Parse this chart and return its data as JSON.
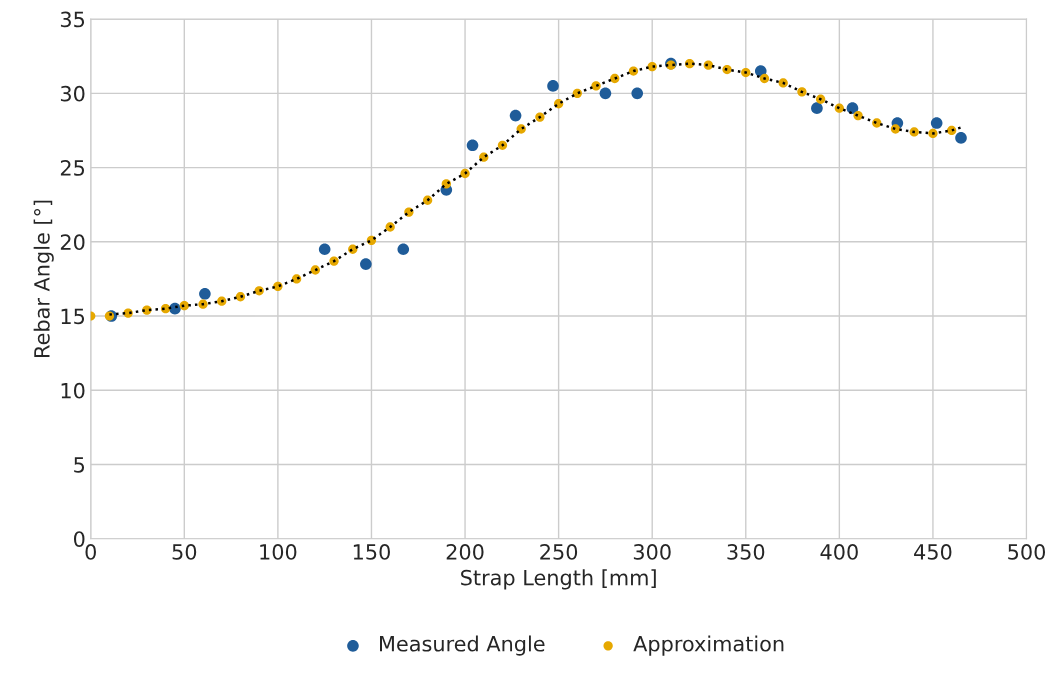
{
  "chart_data": {
    "type": "scatter",
    "xlabel": "Strap Length [mm]",
    "ylabel": "Rebar Angle [°]",
    "xlim": [
      0,
      500
    ],
    "xticks": [
      0,
      50,
      100,
      150,
      200,
      250,
      300,
      350,
      400,
      450,
      500
    ],
    "ylim": [
      0,
      35
    ],
    "yticks": [
      0,
      5,
      10,
      15,
      20,
      25,
      30,
      35
    ],
    "grid": true,
    "legend": "bottom",
    "marker": "circle",
    "series": [
      {
        "name": "Measured Angle",
        "color": "#1f5c99",
        "x": [
          11,
          45,
          61,
          125,
          147,
          167,
          190,
          204,
          227,
          247,
          275,
          292,
          310,
          358,
          388,
          407,
          431,
          452,
          465
        ],
        "values": [
          15,
          15.5,
          16.5,
          19.5,
          18.5,
          19.5,
          23.5,
          26.5,
          28.5,
          30.5,
          30,
          30,
          32,
          31.5,
          29,
          29,
          28,
          28,
          27
        ]
      },
      {
        "name": "Approximation",
        "color": "#e6a800",
        "x": [
          0,
          10,
          20,
          30,
          40,
          50,
          60,
          70,
          80,
          90,
          100,
          110,
          120,
          130,
          140,
          150,
          160,
          170,
          180,
          190,
          200,
          210,
          220,
          230,
          240,
          250,
          260,
          270,
          280,
          290,
          300,
          310,
          320,
          330,
          340,
          350,
          360,
          370,
          380,
          390,
          400,
          410,
          420,
          430,
          440,
          450,
          460
        ],
        "values": [
          15,
          15,
          15.2,
          15.4,
          15.5,
          15.7,
          15.8,
          16.0,
          16.3,
          16.7,
          17.0,
          17.5,
          18.1,
          18.7,
          19.5,
          20.1,
          21.0,
          22.0,
          22.8,
          23.9,
          24.6,
          25.7,
          26.5,
          27.6,
          28.4,
          29.3,
          30.0,
          30.5,
          31.0,
          31.5,
          31.8,
          31.9,
          32.0,
          31.9,
          31.6,
          31.4,
          31.0,
          30.7,
          30.1,
          29.6,
          29.0,
          28.5,
          28.0,
          27.6,
          27.4,
          27.3,
          27.5
        ]
      },
      {
        "type": "line",
        "color": "#000000",
        "line_style": "dotted",
        "marker": "none",
        "x": [
          10,
          20,
          30,
          40,
          50,
          60,
          70,
          80,
          90,
          100,
          110,
          120,
          130,
          140,
          150,
          160,
          170,
          180,
          190,
          200,
          210,
          220,
          230,
          240,
          250,
          260,
          270,
          280,
          290,
          300,
          310,
          320,
          330,
          340,
          350,
          360,
          370,
          380,
          390,
          400,
          410,
          420,
          430,
          440,
          450,
          460,
          465
        ],
        "values": [
          15.1,
          15.2,
          15.4,
          15.5,
          15.7,
          15.8,
          16.0,
          16.3,
          16.7,
          17.0,
          17.5,
          18.1,
          18.7,
          19.5,
          20.1,
          21.0,
          22.0,
          22.8,
          23.9,
          24.6,
          25.7,
          26.5,
          27.6,
          28.4,
          29.3,
          30.0,
          30.5,
          31.0,
          31.5,
          31.8,
          31.9,
          32.0,
          31.9,
          31.6,
          31.4,
          31.0,
          30.7,
          30.1,
          29.6,
          29.0,
          28.5,
          28.0,
          27.6,
          27.4,
          27.3,
          27.5,
          27.7
        ]
      }
    ]
  }
}
